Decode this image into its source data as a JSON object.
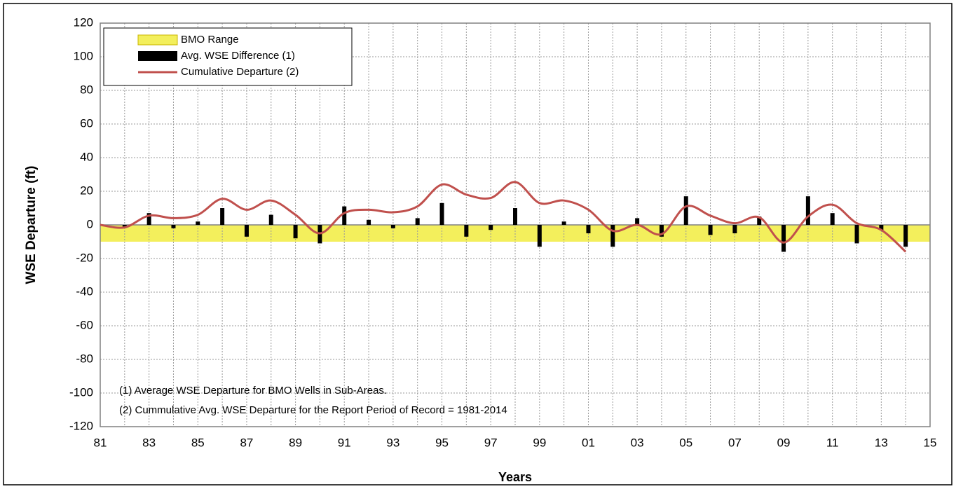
{
  "chart_data": {
    "type": "bar-line",
    "x_label": "Years",
    "y_label": "WSE Departure (ft)",
    "xlim": [
      1981,
      2015
    ],
    "xticks": [
      {
        "value": 1981,
        "label": "81"
      },
      {
        "value": 1983,
        "label": "83"
      },
      {
        "value": 1985,
        "label": "85"
      },
      {
        "value": 1987,
        "label": "87"
      },
      {
        "value": 1989,
        "label": "89"
      },
      {
        "value": 1991,
        "label": "91"
      },
      {
        "value": 1993,
        "label": "93"
      },
      {
        "value": 1995,
        "label": "95"
      },
      {
        "value": 1997,
        "label": "97"
      },
      {
        "value": 1999,
        "label": "99"
      },
      {
        "value": 2001,
        "label": "01"
      },
      {
        "value": 2003,
        "label": "03"
      },
      {
        "value": 2005,
        "label": "05"
      },
      {
        "value": 2007,
        "label": "07"
      },
      {
        "value": 2009,
        "label": "09"
      },
      {
        "value": 2011,
        "label": "11"
      },
      {
        "value": 2013,
        "label": "13"
      },
      {
        "value": 2015,
        "label": "15"
      }
    ],
    "x_minor_ticks": [
      1982,
      1984,
      1986,
      1988,
      1990,
      1992,
      1994,
      1996,
      1998,
      2000,
      2002,
      2004,
      2006,
      2008,
      2010,
      2012,
      2014
    ],
    "ylim": [
      -120,
      120
    ],
    "yticks": [
      -120,
      -100,
      -80,
      -60,
      -40,
      -20,
      0,
      20,
      40,
      60,
      80,
      100,
      120
    ],
    "grid": true,
    "legend": "top-left",
    "bmo_range": {
      "name": "BMO Range",
      "color": "#f3ef5c",
      "range": [
        -10,
        0
      ]
    },
    "series": [
      {
        "name": "Avg. WSE Difference (1)",
        "type": "bar",
        "color": "#000000",
        "x": [
          1982,
          1983,
          1984,
          1985,
          1986,
          1987,
          1988,
          1989,
          1990,
          1991,
          1992,
          1993,
          1994,
          1995,
          1996,
          1997,
          1998,
          1999,
          2000,
          2001,
          2002,
          2003,
          2004,
          2005,
          2006,
          2007,
          2008,
          2009,
          2010,
          2011,
          2012,
          2013,
          2014
        ],
        "values": [
          -1,
          7,
          -2,
          2,
          10,
          -7,
          6,
          -8,
          -11,
          11,
          3,
          -2,
          4,
          13,
          -7,
          -3,
          10,
          -13,
          2,
          -5,
          -13,
          4,
          -7,
          17,
          -6,
          -5,
          5,
          -16,
          17,
          7,
          -11,
          -3,
          -13
        ]
      },
      {
        "name": "Cumulative Departure (2)",
        "type": "line",
        "color": "#c0504d",
        "x": [
          1981,
          1982,
          1983,
          1984,
          1985,
          1986,
          1987,
          1988,
          1989,
          1990,
          1991,
          1992,
          1993,
          1994,
          1995,
          1996,
          1997,
          1998,
          1999,
          2000,
          2001,
          2002,
          2003,
          2004,
          2005,
          2006,
          2007,
          2008,
          2009,
          2010,
          2011,
          2012,
          2013,
          2014
        ],
        "values": [
          0,
          -1.5,
          5.5,
          4,
          6,
          15.5,
          9,
          14.5,
          6,
          -5,
          7,
          9,
          7.5,
          11,
          24,
          18,
          16,
          25.5,
          13,
          14.5,
          9,
          -3.5,
          0,
          -5.5,
          11,
          5.5,
          1,
          4.5,
          -10.5,
          5,
          12,
          1,
          -3,
          -16
        ]
      }
    ],
    "annotations": [
      "(1) Average WSE Departure for BMO Wells in Sub-Areas.",
      "(2) Cummulative Avg. WSE Departure for the Report Period of Record = 1981-2014"
    ]
  }
}
